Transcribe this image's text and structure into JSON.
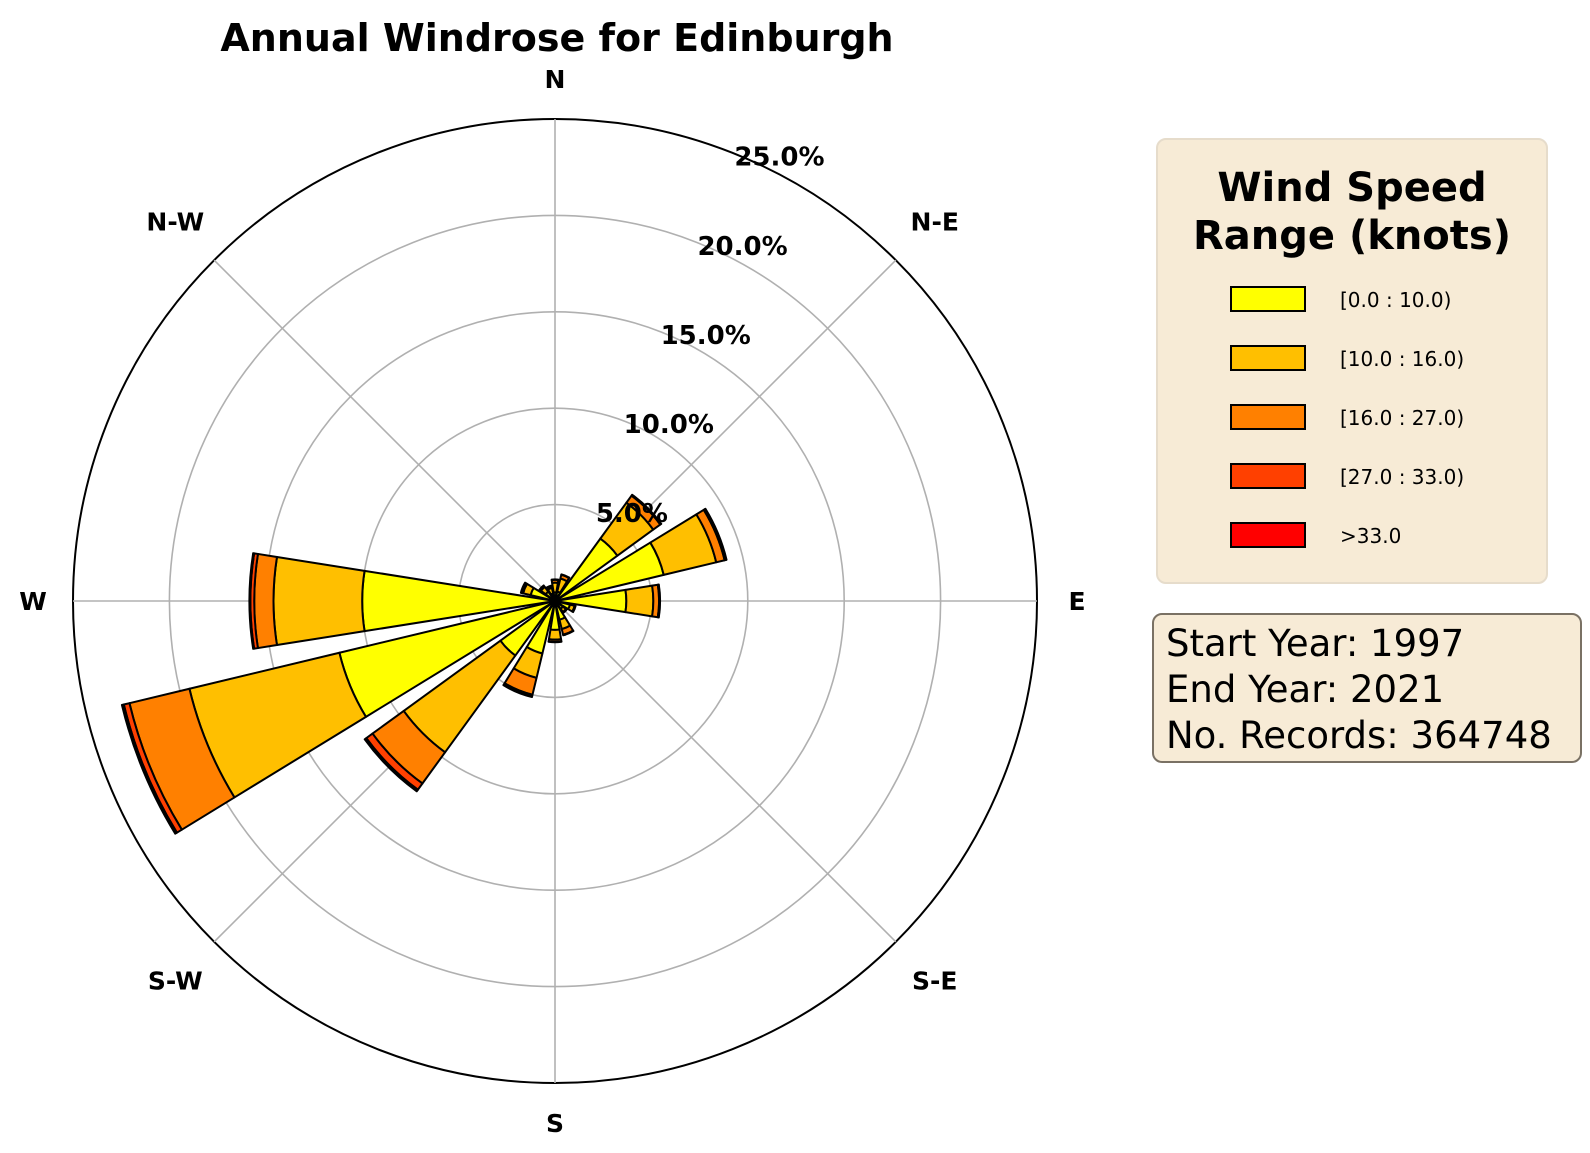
{
  "chart_data": {
    "type": "windrose",
    "title": "Annual Windrose for Edinburgh",
    "directions": [
      "N",
      "N-E",
      "E",
      "S-E",
      "S",
      "S-W",
      "W",
      "N-W"
    ],
    "radial_ticks": [
      5,
      10,
      15,
      20,
      25
    ],
    "radial_tick_labels": [
      "5.0%",
      "10.0%",
      "15.0%",
      "20.0%",
      "25.0%"
    ],
    "rmax": 25,
    "grid": true,
    "sector_width_deg": 18,
    "legend": {
      "title": "Wind Speed\nRange (knots)",
      "placement": "right",
      "entries": [
        {
          "label": "[0.0 : 10.0)",
          "color": "#ffff00"
        },
        {
          "label": "[10.0 : 16.0)",
          "color": "#ffbf00"
        },
        {
          "label": "[16.0 : 27.0)",
          "color": "#ff8000"
        },
        {
          "label": "[27.0 : 33.0)",
          "color": "#ff4000"
        },
        {
          "label": ">33.0",
          "color": "#ff0000"
        }
      ]
    },
    "sectors": [
      {
        "angle": 0,
        "values": [
          0.45,
          0.5,
          0.15,
          0.02,
          0.0
        ]
      },
      {
        "angle": 22.5,
        "values": [
          0.5,
          0.7,
          0.2,
          0.02,
          0.0
        ]
      },
      {
        "angle": 45,
        "values": [
          4.0,
          2.3,
          0.45,
          0.05,
          0.01
        ]
      },
      {
        "angle": 67.5,
        "values": [
          5.8,
          2.8,
          0.45,
          0.08,
          0.02
        ]
      },
      {
        "angle": 90,
        "values": [
          3.7,
          1.4,
          0.3,
          0.04,
          0.01
        ]
      },
      {
        "angle": 112.5,
        "values": [
          0.8,
          0.25,
          0.05,
          0.0,
          0.0
        ]
      },
      {
        "angle": 135,
        "values": [
          0.5,
          0.2,
          0.05,
          0.0,
          0.0
        ]
      },
      {
        "angle": 157.5,
        "values": [
          1.0,
          0.5,
          0.3,
          0.03,
          0.0
        ]
      },
      {
        "angle": 180,
        "values": [
          1.5,
          0.5,
          0.12,
          0.02,
          0.0
        ]
      },
      {
        "angle": 202.5,
        "values": [
          2.8,
          1.3,
          0.9,
          0.1,
          0.02
        ]
      },
      {
        "angle": 225,
        "values": [
          3.5,
          6.2,
          2.0,
          0.4,
          0.1
        ]
      },
      {
        "angle": 247.5,
        "values": [
          11.5,
          8.0,
          3.2,
          0.3,
          0.1
        ]
      },
      {
        "angle": 270,
        "values": [
          10.0,
          4.6,
          1.0,
          0.2,
          0.05
        ]
      },
      {
        "angle": 292.5,
        "values": [
          1.3,
          0.4,
          0.1,
          0.02,
          0.0
        ]
      },
      {
        "angle": 315,
        "values": [
          0.6,
          0.3,
          0.1,
          0.0,
          0.0
        ]
      },
      {
        "angle": 337.5,
        "values": [
          0.4,
          0.3,
          0.1,
          0.02,
          0.0
        ]
      }
    ]
  },
  "info": {
    "start_year": "Start Year: 1997",
    "end_year": "End Year: 2021",
    "records": "No. Records: 364748"
  }
}
